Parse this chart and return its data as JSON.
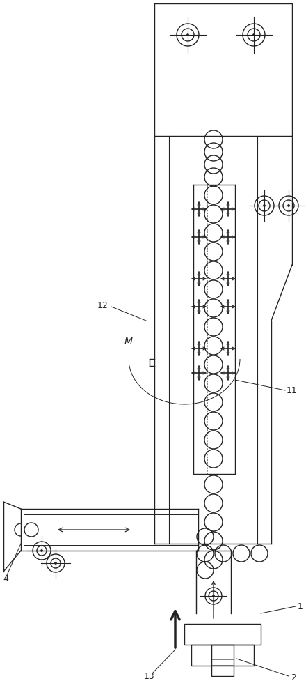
{
  "bg_color": "#ffffff",
  "lc": "#222222",
  "lw": 1.0,
  "fig_width": 4.4,
  "fig_height": 10.0,
  "dpi": 100,
  "xlim": [
    0,
    440
  ],
  "ylim": [
    0,
    1000
  ]
}
